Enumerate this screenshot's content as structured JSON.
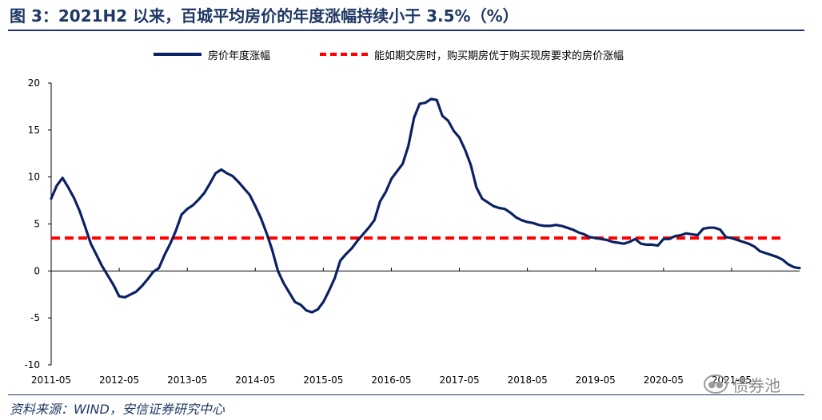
{
  "title": "图 3：2021H2 以来，百城平均房价的年度涨幅持续小于 3.5%（%）",
  "source": "资料来源：WIND，安信证券研究中心",
  "watermark": "债券池",
  "colors": {
    "series": "#0A2164",
    "threshold": "#FF0000",
    "title": "#1F3864"
  },
  "chart_data": {
    "type": "line",
    "ylim": [
      -10,
      20
    ],
    "yticks": [
      -10,
      -5,
      0,
      5,
      10,
      15,
      20
    ],
    "xticks": [
      "2011-05",
      "2012-05",
      "2013-05",
      "2014-05",
      "2015-05",
      "2016-05",
      "2017-05",
      "2018-05",
      "2019-05",
      "2020-05",
      "2021-05"
    ],
    "x_range": [
      "2011-05",
      "2022-05"
    ],
    "grid": false,
    "legend_position": "top",
    "series": [
      {
        "name": "房价年度涨幅",
        "style": "solid",
        "points": [
          [
            "2011-05",
            7.7
          ],
          [
            "2011-06",
            9.1
          ],
          [
            "2011-07",
            9.9
          ],
          [
            "2011-08",
            8.9
          ],
          [
            "2011-09",
            7.8
          ],
          [
            "2011-10",
            6.4
          ],
          [
            "2011-11",
            4.7
          ],
          [
            "2011-12",
            2.9
          ],
          [
            "2012-01",
            1.7
          ],
          [
            "2012-02",
            0.5
          ],
          [
            "2012-03",
            -0.5
          ],
          [
            "2012-04",
            -1.5
          ],
          [
            "2012-05",
            -2.7
          ],
          [
            "2012-06",
            -2.8
          ],
          [
            "2012-07",
            -2.5
          ],
          [
            "2012-08",
            -2.2
          ],
          [
            "2012-09",
            -1.6
          ],
          [
            "2012-10",
            -0.9
          ],
          [
            "2012-11",
            -0.1
          ],
          [
            "2012-12",
            0.3
          ],
          [
            "2013-01",
            1.7
          ],
          [
            "2013-02",
            2.9
          ],
          [
            "2013-03",
            4.3
          ],
          [
            "2013-04",
            6.0
          ],
          [
            "2013-05",
            6.6
          ],
          [
            "2013-06",
            7.0
          ],
          [
            "2013-07",
            7.6
          ],
          [
            "2013-08",
            8.3
          ],
          [
            "2013-09",
            9.3
          ],
          [
            "2013-10",
            10.4
          ],
          [
            "2013-11",
            10.8
          ],
          [
            "2013-12",
            10.4
          ],
          [
            "2014-01",
            10.1
          ],
          [
            "2014-02",
            9.5
          ],
          [
            "2014-03",
            8.8
          ],
          [
            "2014-04",
            8.1
          ],
          [
            "2014-05",
            6.9
          ],
          [
            "2014-06",
            5.6
          ],
          [
            "2014-07",
            4.0
          ],
          [
            "2014-08",
            2.2
          ],
          [
            "2014-09",
            0.0
          ],
          [
            "2014-10",
            -1.3
          ],
          [
            "2014-11",
            -2.3
          ],
          [
            "2014-12",
            -3.3
          ],
          [
            "2015-01",
            -3.6
          ],
          [
            "2015-02",
            -4.2
          ],
          [
            "2015-03",
            -4.4
          ],
          [
            "2015-04",
            -4.1
          ],
          [
            "2015-05",
            -3.3
          ],
          [
            "2015-06",
            -2.1
          ],
          [
            "2015-07",
            -0.8
          ],
          [
            "2015-08",
            1.1
          ],
          [
            "2015-09",
            1.8
          ],
          [
            "2015-10",
            2.4
          ],
          [
            "2015-11",
            3.2
          ],
          [
            "2015-12",
            3.9
          ],
          [
            "2016-01",
            4.6
          ],
          [
            "2016-02",
            5.4
          ],
          [
            "2016-03",
            7.4
          ],
          [
            "2016-04",
            8.4
          ],
          [
            "2016-05",
            9.8
          ],
          [
            "2016-06",
            10.6
          ],
          [
            "2016-07",
            11.4
          ],
          [
            "2016-08",
            13.3
          ],
          [
            "2016-09",
            16.3
          ],
          [
            "2016-10",
            17.8
          ],
          [
            "2016-11",
            17.9
          ],
          [
            "2016-12",
            18.3
          ],
          [
            "2017-01",
            18.2
          ],
          [
            "2017-02",
            16.5
          ],
          [
            "2017-03",
            16.0
          ],
          [
            "2017-04",
            14.9
          ],
          [
            "2017-05",
            14.2
          ],
          [
            "2017-06",
            12.9
          ],
          [
            "2017-07",
            11.3
          ],
          [
            "2017-08",
            8.9
          ],
          [
            "2017-09",
            7.7
          ],
          [
            "2017-10",
            7.3
          ],
          [
            "2017-11",
            6.9
          ],
          [
            "2017-12",
            6.7
          ],
          [
            "2018-01",
            6.6
          ],
          [
            "2018-02",
            6.2
          ],
          [
            "2018-03",
            5.7
          ],
          [
            "2018-04",
            5.4
          ],
          [
            "2018-05",
            5.2
          ],
          [
            "2018-06",
            5.1
          ],
          [
            "2018-07",
            4.9
          ],
          [
            "2018-08",
            4.8
          ],
          [
            "2018-09",
            4.8
          ],
          [
            "2018-10",
            4.9
          ],
          [
            "2018-11",
            4.8
          ],
          [
            "2018-12",
            4.6
          ],
          [
            "2019-01",
            4.4
          ],
          [
            "2019-02",
            4.1
          ],
          [
            "2019-03",
            3.9
          ],
          [
            "2019-04",
            3.6
          ],
          [
            "2019-05",
            3.5
          ],
          [
            "2019-06",
            3.4
          ],
          [
            "2019-07",
            3.3
          ],
          [
            "2019-08",
            3.1
          ],
          [
            "2019-09",
            3.0
          ],
          [
            "2019-10",
            2.9
          ],
          [
            "2019-11",
            3.1
          ],
          [
            "2019-12",
            3.4
          ],
          [
            "2020-01",
            2.9
          ],
          [
            "2020-02",
            2.8
          ],
          [
            "2020-03",
            2.8
          ],
          [
            "2020-04",
            2.7
          ],
          [
            "2020-05",
            3.4
          ],
          [
            "2020-06",
            3.4
          ],
          [
            "2020-07",
            3.7
          ],
          [
            "2020-08",
            3.8
          ],
          [
            "2020-09",
            4.0
          ],
          [
            "2020-10",
            3.9
          ],
          [
            "2020-11",
            3.8
          ],
          [
            "2020-12",
            4.5
          ],
          [
            "2021-01",
            4.6
          ],
          [
            "2021-02",
            4.6
          ],
          [
            "2021-03",
            4.4
          ],
          [
            "2021-04",
            3.6
          ],
          [
            "2021-05",
            3.5
          ],
          [
            "2021-06",
            3.3
          ],
          [
            "2021-07",
            3.1
          ],
          [
            "2021-08",
            2.9
          ],
          [
            "2021-09",
            2.6
          ],
          [
            "2021-10",
            2.1
          ],
          [
            "2021-11",
            1.9
          ],
          [
            "2021-12",
            1.7
          ],
          [
            "2022-01",
            1.5
          ],
          [
            "2022-02",
            1.2
          ],
          [
            "2022-03",
            0.7
          ],
          [
            "2022-04",
            0.4
          ],
          [
            "2022-05",
            0.3
          ]
        ]
      },
      {
        "name": "能如期交房时，购买期房优于购买现房要求的房价涨幅",
        "style": "dashed",
        "constant": 3.5
      }
    ]
  }
}
